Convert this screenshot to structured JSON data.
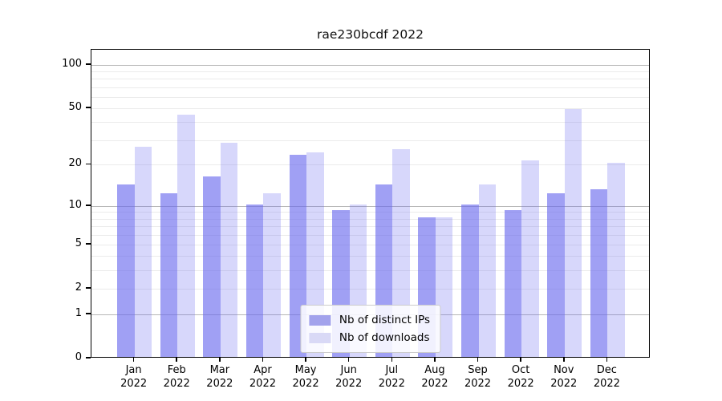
{
  "chart_data": {
    "type": "bar",
    "title": "rae230bcdf 2022",
    "categories": [
      "Jan 2022",
      "Feb 2022",
      "Mar 2022",
      "Apr 2022",
      "May 2022",
      "Jun 2022",
      "Jul 2022",
      "Aug 2022",
      "Sep 2022",
      "Oct 2022",
      "Nov 2022",
      "Dec 2022"
    ],
    "series": [
      {
        "name": "Nb of distinct IPs",
        "color": "#a2a2ec",
        "fill": "rgba(102,102,238,0.62)",
        "values": [
          14,
          12,
          16,
          10,
          23,
          9,
          14,
          8,
          10,
          9,
          12,
          13
        ]
      },
      {
        "name": "Nb of downloads",
        "color": "#d9d9f6",
        "fill": "rgba(102,102,238,0.26)",
        "values": [
          26,
          44,
          28,
          12,
          24,
          10,
          25,
          8,
          14,
          21,
          48,
          20
        ]
      }
    ],
    "xlabel": "",
    "ylabel": "",
    "yscale": "log10(1+y)",
    "ylim": [
      0,
      127
    ],
    "ytick_labels": [
      0,
      1,
      2,
      5,
      10,
      20,
      50,
      100
    ],
    "major_gridlines": [
      1,
      10,
      100
    ],
    "minor_gridlines": [
      2,
      3,
      4,
      5,
      6,
      7,
      8,
      9,
      20,
      30,
      40,
      50,
      60,
      70,
      80,
      90
    ],
    "grid": true,
    "legend_position": "lower center",
    "colors": {
      "major_grid": "#b8b8b8",
      "minor_grid": "#ebebeb",
      "spine": "#000000",
      "text": "#000000",
      "background": "#ffffff"
    }
  }
}
